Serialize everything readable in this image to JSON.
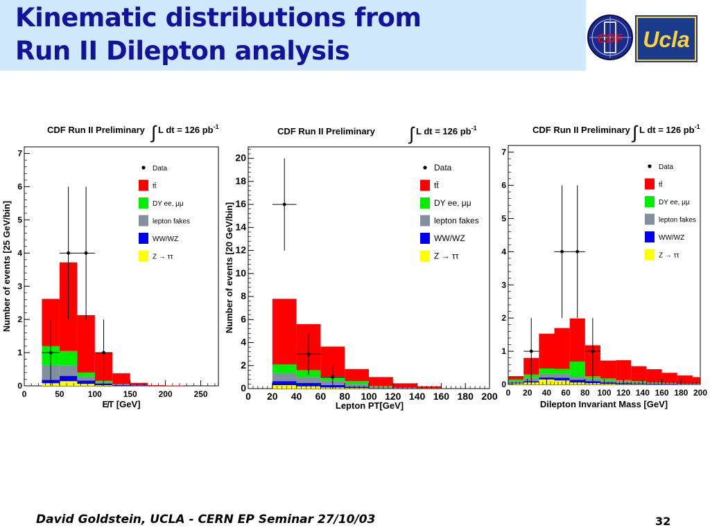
{
  "slide": {
    "title_line1": "Kinematic distributions from",
    "title_line2": "Run II Dilepton analysis",
    "footer": "David Goldstein, UCLA - CERN EP Seminar 27/10/03",
    "page_number": "32",
    "logo_cdf_text": "CDF",
    "logo_ucla_text": "Ucla"
  },
  "colors": {
    "ttbar": "#ff0000",
    "dy": "#00ee00",
    "fakes": "#8090a0",
    "wwwz": "#0000ee",
    "ztautau": "#ffff00",
    "title_text": "#12129a",
    "title_bg": "#cfe8fb"
  },
  "chart_data": [
    {
      "type": "bar",
      "header": "CDF Run II Preliminary",
      "lumi": "L dt = 126 pb",
      "lumi_exp": "-1",
      "xlabel": "E̸T [GeV]",
      "ylabel": "Number of events [25 GeV/bin]",
      "xlim": [
        0,
        275
      ],
      "ylim": [
        0,
        7.2
      ],
      "xticks": [
        0,
        50,
        100,
        150,
        200,
        250
      ],
      "yticks": [
        0,
        1,
        2,
        3,
        4,
        5,
        6,
        7
      ],
      "bin_edges": [
        25,
        50,
        75,
        100,
        125,
        150,
        175,
        200,
        225
      ],
      "stack": [
        {
          "name": "Z → ττ",
          "color_key": "ztautau",
          "values": [
            0.08,
            0.14,
            0.06,
            0.02,
            0,
            0,
            0,
            0
          ]
        },
        {
          "name": "WW/WZ",
          "color_key": "wwwz",
          "values": [
            0.1,
            0.16,
            0.1,
            0.05,
            0.02,
            0.01,
            0,
            0
          ]
        },
        {
          "name": "lepton fakes",
          "color_key": "fakes",
          "values": [
            0.45,
            0.32,
            0.12,
            0.04,
            0.02,
            0.01,
            0,
            0
          ]
        },
        {
          "name": "DY ee, μμ",
          "color_key": "dy",
          "values": [
            0.57,
            0.43,
            0.12,
            0.04,
            0.01,
            0,
            0,
            0
          ]
        },
        {
          "name": "tt̄",
          "color_key": "ttbar",
          "values": [
            1.42,
            2.67,
            1.73,
            0.85,
            0.33,
            0.07,
            0.02,
            0.01
          ]
        }
      ],
      "points": [
        {
          "x": 37.5,
          "y": 1,
          "err": 1.0
        },
        {
          "x": 62.5,
          "y": 4,
          "err": 2.0
        },
        {
          "x": 87.5,
          "y": 4,
          "err": 2.0
        },
        {
          "x": 112.5,
          "y": 1,
          "err": 1.0
        }
      ],
      "legend": [
        "Data",
        "tt̄",
        "DY ee, μμ",
        "lepton fakes",
        "WW/WZ",
        "Z → ττ"
      ],
      "legend_position": "top-right"
    },
    {
      "type": "bar",
      "header": "CDF Run II Preliminary",
      "lumi": "L dt = 126 pb",
      "lumi_exp": "-1",
      "xlabel": "Lepton PT[GeV]",
      "ylabel": "Number of events [20 GeV/bin]",
      "xlim": [
        0,
        200
      ],
      "ylim": [
        0,
        21
      ],
      "xticks": [
        0,
        20,
        40,
        60,
        80,
        100,
        120,
        140,
        160,
        180,
        200
      ],
      "yticks": [
        0,
        2,
        4,
        6,
        8,
        10,
        12,
        14,
        16,
        18,
        20
      ],
      "bin_edges": [
        20,
        40,
        60,
        80,
        100,
        120,
        140,
        160
      ],
      "stack": [
        {
          "name": "Z → ττ",
          "color_key": "ztautau",
          "values": [
            0.3,
            0.2,
            0.1,
            0.05,
            0.02,
            0,
            0
          ]
        },
        {
          "name": "WW/WZ",
          "color_key": "wwwz",
          "values": [
            0.35,
            0.3,
            0.2,
            0.1,
            0.03,
            0.01,
            0
          ]
        },
        {
          "name": "lepton fakes",
          "color_key": "fakes",
          "values": [
            0.7,
            0.5,
            0.4,
            0.25,
            0.1,
            0.05,
            0.02
          ]
        },
        {
          "name": "DY ee, μμ",
          "color_key": "dy",
          "values": [
            0.75,
            0.6,
            0.35,
            0.25,
            0.08,
            0.03,
            0.01
          ]
        },
        {
          "name": "tt̄",
          "color_key": "ttbar",
          "values": [
            5.7,
            4.0,
            2.6,
            1.05,
            0.77,
            0.37,
            0.17
          ]
        }
      ],
      "points": [
        {
          "x": 30,
          "y": 16,
          "err": 4.0
        },
        {
          "x": 50,
          "y": 3,
          "err": 1.8
        },
        {
          "x": 70,
          "y": 1,
          "err": 1.0
        }
      ],
      "legend": [
        "Data",
        "tt̄",
        "DY ee, μμ",
        "lepton fakes",
        "WW/WZ",
        "Z → ττ"
      ],
      "legend_position": "top-right"
    },
    {
      "type": "bar",
      "header": "CDF Run II Preliminary",
      "lumi": "L dt = 126 pb",
      "lumi_exp": "-1",
      "xlabel": "Dilepton Invariant Mass [GeV]",
      "ylabel": "",
      "xlim": [
        0,
        200
      ],
      "ylim": [
        0,
        7.2
      ],
      "xticks": [
        0,
        20,
        40,
        60,
        80,
        100,
        120,
        140,
        160,
        180,
        200
      ],
      "yticks": [
        0,
        1,
        2,
        3,
        4,
        5,
        6,
        7
      ],
      "bin_edges": [
        0,
        16,
        32,
        48,
        64,
        80,
        96,
        112,
        128,
        144,
        160,
        176,
        192,
        200
      ],
      "stack": [
        {
          "name": "Z → ττ",
          "color_key": "ztautau",
          "values": [
            0.03,
            0.06,
            0.15,
            0.12,
            0.06,
            0.04,
            0.02,
            0.01,
            0.01,
            0,
            0,
            0,
            0
          ]
        },
        {
          "name": "WW/WZ",
          "color_key": "wwwz",
          "values": [
            0.02,
            0.04,
            0.06,
            0.08,
            0.08,
            0.06,
            0.04,
            0.03,
            0.02,
            0.01,
            0.01,
            0,
            0
          ]
        },
        {
          "name": "lepton fakes",
          "color_key": "fakes",
          "values": [
            0.05,
            0.1,
            0.12,
            0.12,
            0.1,
            0.08,
            0.07,
            0.06,
            0.05,
            0.04,
            0.03,
            0.02,
            0.02
          ]
        },
        {
          "name": "DY ee, μμ",
          "color_key": "dy",
          "values": [
            0.05,
            0.1,
            0.15,
            0.15,
            0.45,
            0.07,
            0.05,
            0.03,
            0.02,
            0.01,
            0.01,
            0,
            0
          ]
        },
        {
          "name": "tt̄",
          "color_key": "ttbar",
          "values": [
            0.1,
            0.5,
            1.05,
            1.23,
            1.3,
            0.93,
            0.54,
            0.6,
            0.45,
            0.4,
            0.3,
            0.25,
            0.2
          ]
        }
      ],
      "points": [
        {
          "x": 24,
          "y": 1,
          "err": 1.0,
          "xerr": 8
        },
        {
          "x": 56,
          "y": 4,
          "err": 2.0,
          "xerr": 8
        },
        {
          "x": 72,
          "y": 4,
          "err": 2.0,
          "xerr": 8
        },
        {
          "x": 88,
          "y": 1,
          "err": 1.0,
          "xerr": 8
        }
      ],
      "legend": [
        "Data",
        "tt̄",
        "DY ee, μμ",
        "lepton fakes",
        "WW/WZ",
        "Z → ττ"
      ],
      "legend_position": "top-right"
    }
  ]
}
